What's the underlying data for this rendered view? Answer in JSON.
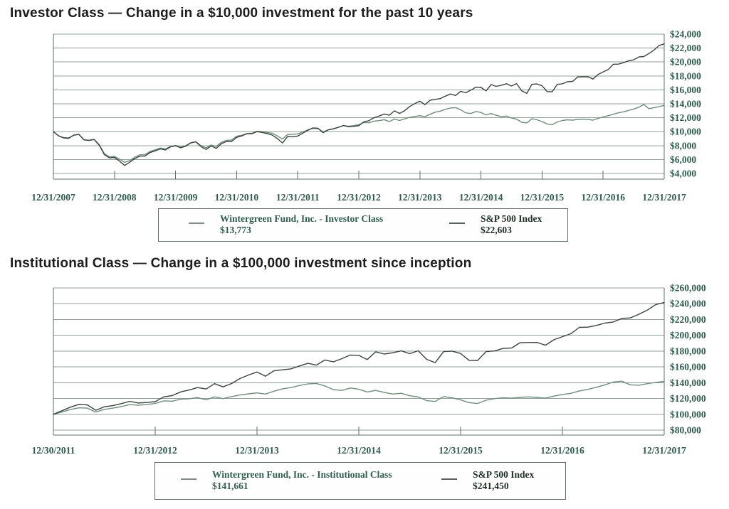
{
  "colors": {
    "fund_line": "#6d8f7e",
    "index_line": "#3b443e",
    "grid_line": "#8fa097",
    "axis_line": "#5f6f66",
    "axis_text": "#2d5c4c",
    "title_text": "#1c1c1c"
  },
  "chart_data": [
    {
      "type": "line",
      "title": "Investor Class — Change in a $10,000 investment for the past 10 years",
      "grid": "horizontal",
      "legend_position": "below-center",
      "ylim": [
        4000,
        24000
      ],
      "y_step": 2000,
      "y_tick_labels": [
        "$24,000",
        "$22,000",
        "$20,000",
        "$18,000",
        "$16,000",
        "$14,000",
        "$12,000",
        "$10,000",
        "$8,000",
        "$6,000",
        "$4,000"
      ],
      "x_tick_labels": [
        "12/31/2007",
        "12/31/2008",
        "12/31/2009",
        "12/31/2010",
        "12/31/2011",
        "12/31/2012",
        "12/31/2013",
        "12/31/2014",
        "12/31/2015",
        "12/31/2016",
        "12/31/2017"
      ],
      "series": [
        {
          "name": "Wintergreen Fund, Inc. - Investor Class",
          "final_label": "$13,773",
          "color_key": "fund_line",
          "values": [
            10000,
            9420,
            9150,
            9100,
            9480,
            9600,
            8860,
            8780,
            8900,
            8150,
            6850,
            6380,
            6450,
            6050,
            5600,
            5850,
            6350,
            6680,
            6700,
            7150,
            7400,
            7650,
            7520,
            7880,
            8020,
            7780,
            7990,
            8420,
            8560,
            7980,
            7680,
            8080,
            7890,
            8470,
            8760,
            8800,
            9350,
            9480,
            9720,
            9770,
            10060,
            10010,
            9880,
            9780,
            9380,
            8950,
            9580,
            9620,
            9680,
            9960,
            10260,
            10470,
            10430,
            9960,
            10280,
            10430,
            10620,
            10870,
            10780,
            10870,
            11000,
            11320,
            11280,
            11520,
            11580,
            11720,
            11450,
            11820,
            11600,
            11840,
            12050,
            12180,
            12300,
            12150,
            12500,
            12800,
            12950,
            13200,
            13400,
            13450,
            13150,
            12700,
            12600,
            12900,
            12750,
            12400,
            12600,
            12350,
            12150,
            12250,
            11950,
            11800,
            11350,
            11250,
            11850,
            11700,
            11450,
            11100,
            11000,
            11400,
            11600,
            11700,
            11650,
            11750,
            11800,
            11750,
            11650,
            11900,
            12100,
            12300,
            12500,
            12700,
            12850,
            13050,
            13250,
            13500,
            13900,
            13300,
            13450,
            13600,
            13773
          ]
        },
        {
          "name": "S&P 500 Index",
          "final_label": "$22,603",
          "color_key": "index_line",
          "values": [
            10000,
            9400,
            9095,
            9056,
            9497,
            9620,
            8812,
            8738,
            8865,
            8076,
            6719,
            6235,
            6301,
            5772,
            5157,
            5609,
            6146,
            6490,
            6503,
            6995,
            7247,
            7517,
            7377,
            7820,
            7971,
            7684,
            7922,
            8400,
            8533,
            7850,
            7440,
            7961,
            7602,
            8280,
            8595,
            8595,
            9169,
            9386,
            9708,
            9712,
            9999,
            9886,
            9721,
            9524,
            9007,
            8374,
            9289,
            9269,
            9363,
            9782,
            10205,
            10541,
            10475,
            9845,
            10251,
            10393,
            10627,
            10901,
            10699,
            10761,
            10859,
            11421,
            11577,
            12011,
            12243,
            12529,
            12361,
            12990,
            12614,
            13010,
            13608,
            14023,
            14378,
            13881,
            14515,
            14637,
            14745,
            15092,
            15404,
            15191,
            15799,
            15578,
            15958,
            16387,
            16346,
            15856,
            16768,
            16503,
            16661,
            16876,
            16549,
            16897,
            15878,
            15486,
            16793,
            16843,
            16577,
            15755,
            15734,
            16801,
            16867,
            17171,
            17216,
            17851,
            17876,
            17880,
            17555,
            18205,
            18565,
            18918,
            19669,
            19693,
            19896,
            20177,
            20306,
            20724,
            20788,
            21216,
            21711,
            22378,
            22603
          ]
        }
      ]
    },
    {
      "type": "line",
      "title": "Institutional Class — Change in a $100,000 investment since inception",
      "grid": "horizontal",
      "legend_position": "below-center",
      "ylim": [
        80000,
        260000
      ],
      "y_step": 20000,
      "y_tick_labels": [
        "$260,000",
        "$240,000",
        "$220,000",
        "$200,000",
        "$180,000",
        "$160,000",
        "$140,000",
        "$120,000",
        "$100,000",
        "$80,000"
      ],
      "x_tick_labels": [
        "12/30/2011",
        "12/31/2012",
        "12/31/2013",
        "12/31/2014",
        "12/31/2015",
        "12/31/2016",
        "12/31/2017"
      ],
      "series": [
        {
          "name": "Wintergreen Fund, Inc. - Institutional Class",
          "final_label": "$141,661",
          "color_key": "fund_line",
          "values": [
            100000,
            102900,
            106000,
            108200,
            107800,
            102900,
            106200,
            107800,
            109700,
            112300,
            111400,
            112300,
            113700,
            117000,
            116600,
            119100,
            119700,
            121100,
            118300,
            122100,
            119900,
            122400,
            124500,
            125900,
            127100,
            125600,
            129200,
            132300,
            133800,
            136400,
            138500,
            139000,
            135900,
            131200,
            130200,
            133300,
            131800,
            128200,
            130200,
            127600,
            125600,
            126600,
            123500,
            121900,
            117300,
            116300,
            122500,
            120900,
            118300,
            114700,
            113700,
            117800,
            119900,
            120900,
            120400,
            121400,
            122000,
            121400,
            120400,
            123000,
            125100,
            126500,
            129600,
            131600,
            134200,
            137200,
            140800,
            141900,
            137300,
            136800,
            138800,
            140400,
            141661
          ]
        },
        {
          "name": "S&P 500 Index",
          "final_label": "$241,450",
          "color_key": "index_line",
          "values": [
            100000,
            104480,
            108994,
            112580,
            111871,
            105148,
            109480,
            111002,
            113500,
            116428,
            114274,
            114937,
            115983,
            121991,
            123650,
            128287,
            130763,
            133823,
            132030,
            138750,
            134726,
            138957,
            145349,
            149782,
            153572,
            148258,
            155034,
            156336,
            157493,
            161194,
            164531,
            162260,
            168750,
            166388,
            170448,
            175033,
            174595,
            169357,
            179095,
            176265,
            177957,
            180253,
            176756,
            180468,
            169586,
            165397,
            179356,
            179894,
            177052,
            168270,
            168051,
            179445,
            180145,
            183388,
            183865,
            190649,
            190916,
            190954,
            187479,
            194416,
            198265,
            202032,
            210053,
            210305,
            212471,
            215467,
            216846,
            221313,
            221999,
            226572,
            231851,
            238969,
            241450
          ]
        }
      ]
    }
  ]
}
